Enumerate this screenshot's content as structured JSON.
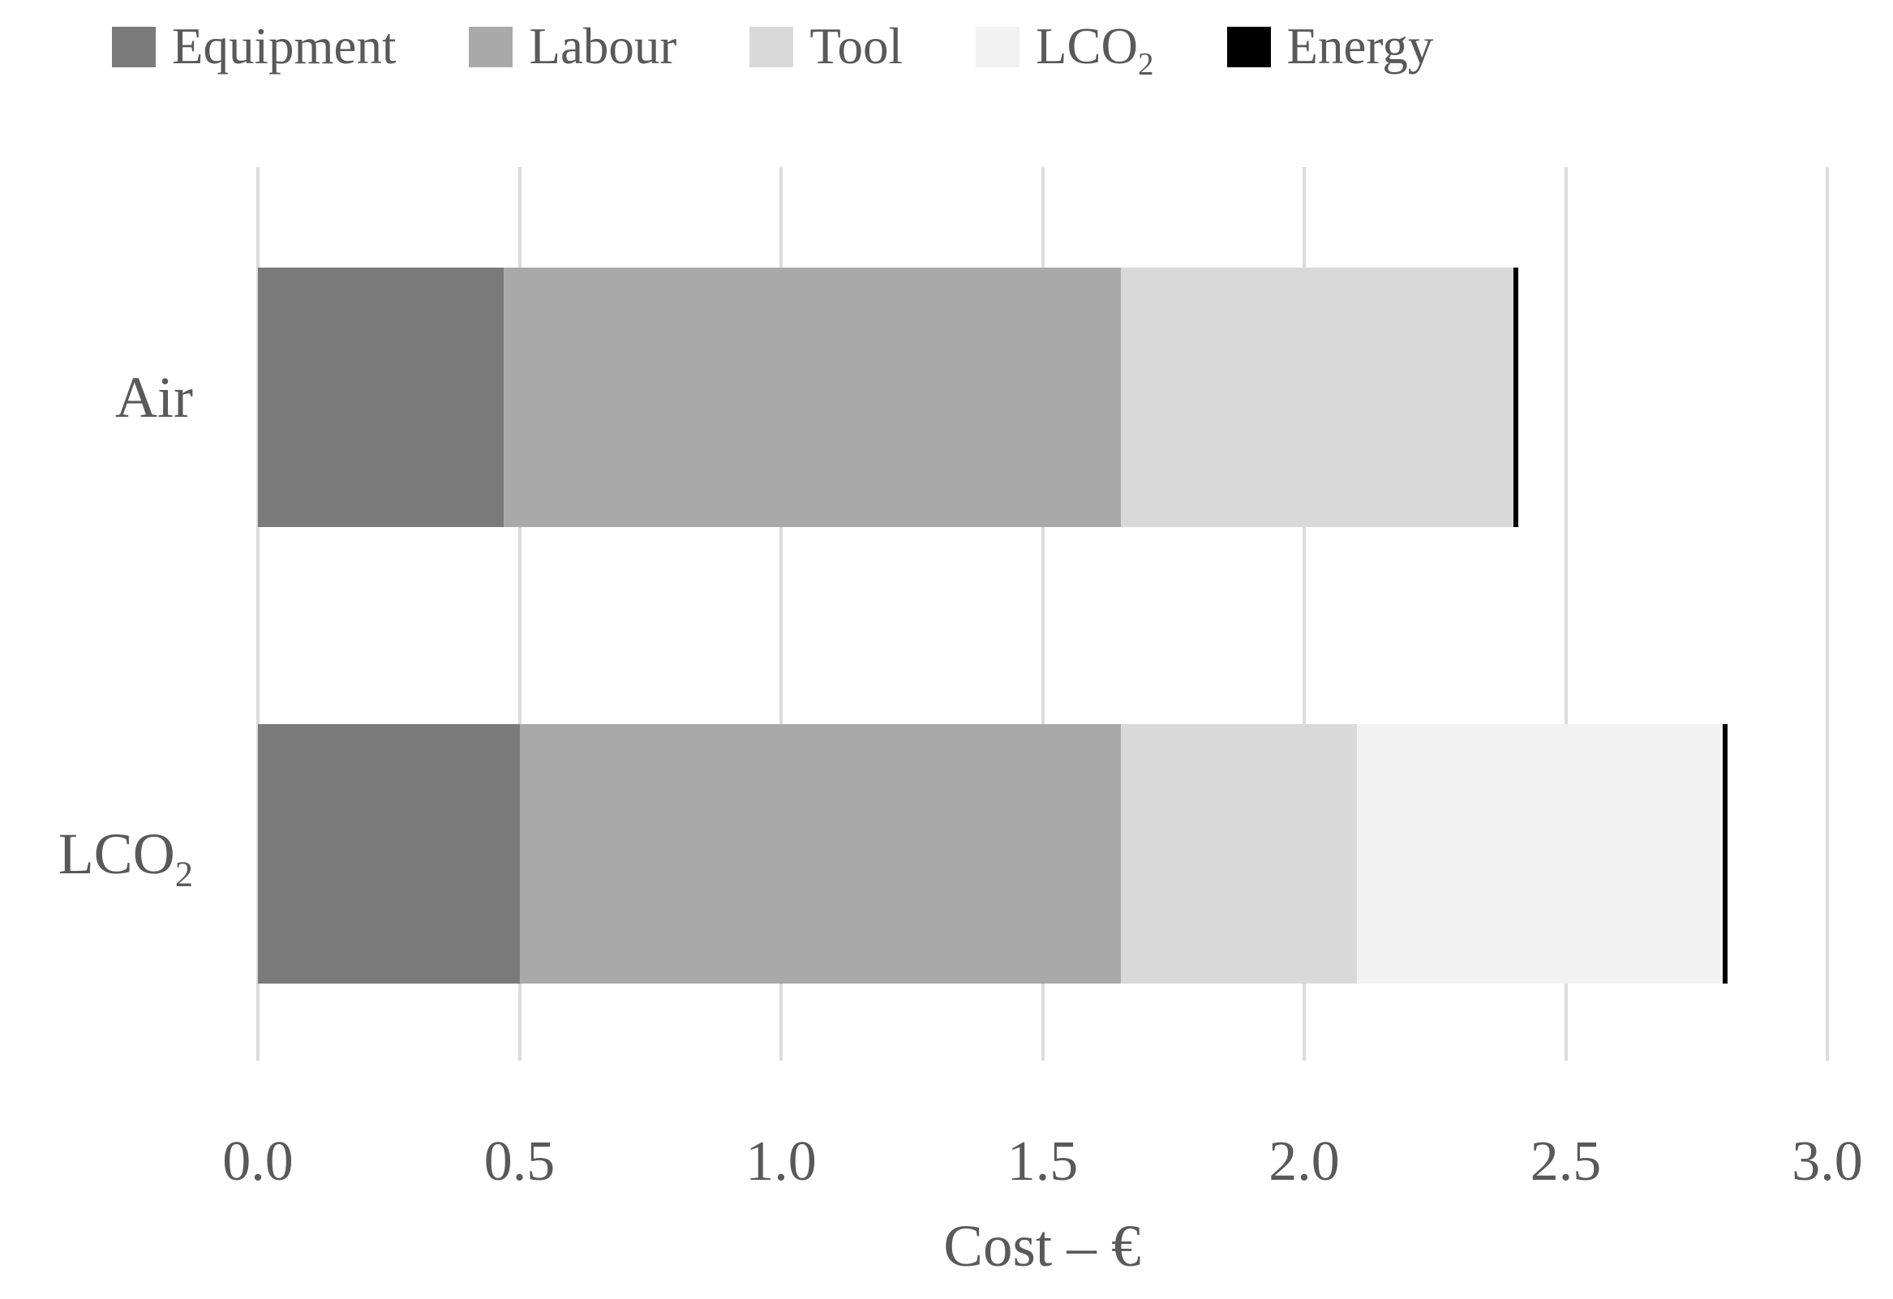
{
  "chart_data": {
    "type": "bar",
    "orientation": "horizontal",
    "stacked": true,
    "title": "",
    "xlabel": "Cost – €",
    "ylabel": "",
    "xlim": [
      0.0,
      3.0
    ],
    "tick_labels": [
      "0.0",
      "0.5",
      "1.0",
      "1.5",
      "2.0",
      "2.5",
      "3.0"
    ],
    "grid": "vertical",
    "legend_position": "top",
    "categories": [
      "Air",
      "LCO2"
    ],
    "category_labels": [
      {
        "text": "Air",
        "sub": ""
      },
      {
        "text": "LCO",
        "sub": "2"
      }
    ],
    "series": [
      {
        "name": "Equipment",
        "sub": "",
        "color": "#7a7a7a",
        "values": [
          0.47,
          0.5
        ]
      },
      {
        "name": "Labour",
        "sub": "",
        "color": "#a9a9a9",
        "values": [
          1.18,
          1.15
        ]
      },
      {
        "name": "Tool",
        "sub": "",
        "color": "#d9d9d9",
        "values": [
          0.75,
          0.45
        ]
      },
      {
        "name": "LCO",
        "sub": "2",
        "color": "#f2f2f2",
        "values": [
          0.0,
          0.7
        ]
      },
      {
        "name": "Energy",
        "sub": "",
        "color": "#000000",
        "values": [
          0.01,
          0.01
        ]
      }
    ]
  },
  "colors": {
    "background": "#ffffff",
    "gridline": "#dcdcdc",
    "text": "#595959"
  }
}
